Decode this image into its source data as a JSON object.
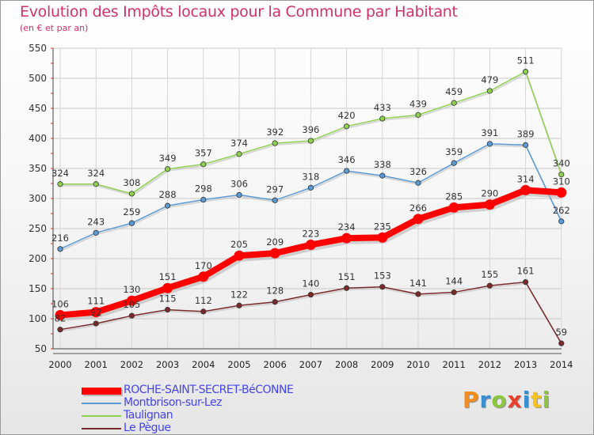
{
  "chart_data": {
    "type": "line",
    "title": "Evolution des Impôts locaux pour la Commune par Habitant",
    "subtitle": "(en € et par an)",
    "xlabel": "",
    "ylabel": "",
    "ylim": [
      50,
      550
    ],
    "yticks": [
      50,
      100,
      150,
      200,
      250,
      300,
      350,
      400,
      450,
      500,
      550
    ],
    "categories": [
      "2000",
      "2001",
      "2002",
      "2003",
      "2004",
      "2005",
      "2006",
      "2007",
      "2008",
      "2009",
      "2010",
      "2011",
      "2012",
      "2013",
      "2014"
    ],
    "grid": true,
    "legend_position": "bottom-left",
    "series": [
      {
        "name": "Taulignan",
        "color": "#8fd14f",
        "highlight": false,
        "values": [
          324,
          324,
          308,
          349,
          357,
          374,
          392,
          396,
          420,
          433,
          439,
          459,
          479,
          511,
          340
        ]
      },
      {
        "name": "Montbrison-sur-Lez",
        "color": "#5a9bd6",
        "highlight": false,
        "values": [
          216,
          243,
          259,
          288,
          298,
          306,
          297,
          318,
          346,
          338,
          326,
          359,
          391,
          389,
          262
        ]
      },
      {
        "name": "Le Pègue",
        "color": "#7a2a2a",
        "highlight": false,
        "values": [
          82,
          92,
          105,
          115,
          112,
          122,
          128,
          140,
          151,
          153,
          141,
          144,
          155,
          161,
          59
        ]
      },
      {
        "name": "ROCHE-SAINT-SECRET-BéCONNE",
        "color": "#ff0000",
        "highlight": true,
        "values": [
          106,
          111,
          130,
          151,
          170,
          205,
          209,
          223,
          234,
          235,
          266,
          285,
          290,
          314,
          310
        ]
      }
    ]
  },
  "legend": {
    "items": [
      {
        "label": "ROCHE-SAINT-SECRET-BéCONNE",
        "color": "#ff0000",
        "label_color": "#4444ee",
        "thick": true
      },
      {
        "label": "Montbrison-sur-Lez",
        "color": "#5a9bd6",
        "label_color": "#4444ee",
        "thick": false
      },
      {
        "label": "Taulignan",
        "color": "#8fd14f",
        "label_color": "#4444ee",
        "thick": false
      },
      {
        "label": "Le Pègue",
        "color": "#7a2a2a",
        "label_color": "#4444ee",
        "thick": false
      }
    ]
  },
  "logo": {
    "text": "Proxiti",
    "letter_colors": [
      "#f28c1e",
      "#3a8fd0",
      "#8cc63f",
      "#e8402a",
      "#3a8fd0",
      "#f7c21c",
      "#8cc63f"
    ]
  }
}
